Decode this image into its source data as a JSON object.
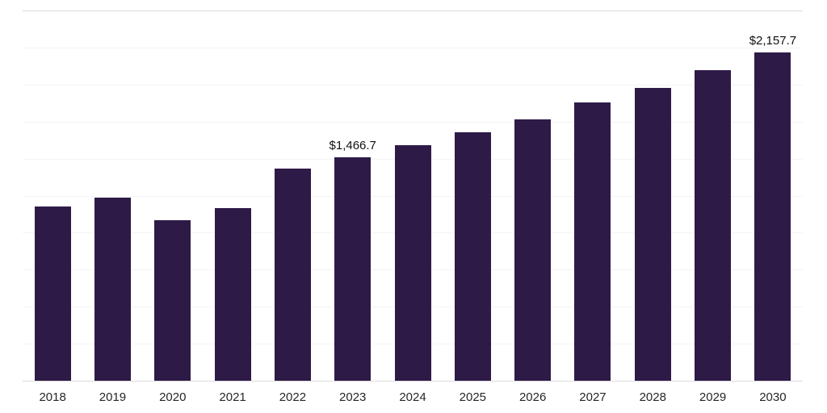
{
  "chart_data": {
    "type": "bar",
    "title": "",
    "xlabel": "",
    "ylabel": "",
    "categories": [
      "2018",
      "2019",
      "2020",
      "2021",
      "2022",
      "2023",
      "2024",
      "2025",
      "2026",
      "2027",
      "2028",
      "2029",
      "2030"
    ],
    "values": [
      1145,
      1203,
      1055,
      1134,
      1394,
      1466.7,
      1548,
      1633,
      1717,
      1829,
      1924,
      2041,
      2157.7
    ],
    "data_labels": {
      "2023": "$1,466.7",
      "2030": "$2,157.7"
    },
    "unit_prefix": "$",
    "ylim": [
      0,
      2433
    ],
    "grid": "horizontal",
    "grid_divisions": 10,
    "legend": "none",
    "colors": {
      "bar": "#2e1a47",
      "gridline": "#f4f4f4",
      "axis_line": "#dcdcdc",
      "tick_label": "#262626",
      "value_label": "#111111",
      "background": "#ffffff"
    }
  }
}
